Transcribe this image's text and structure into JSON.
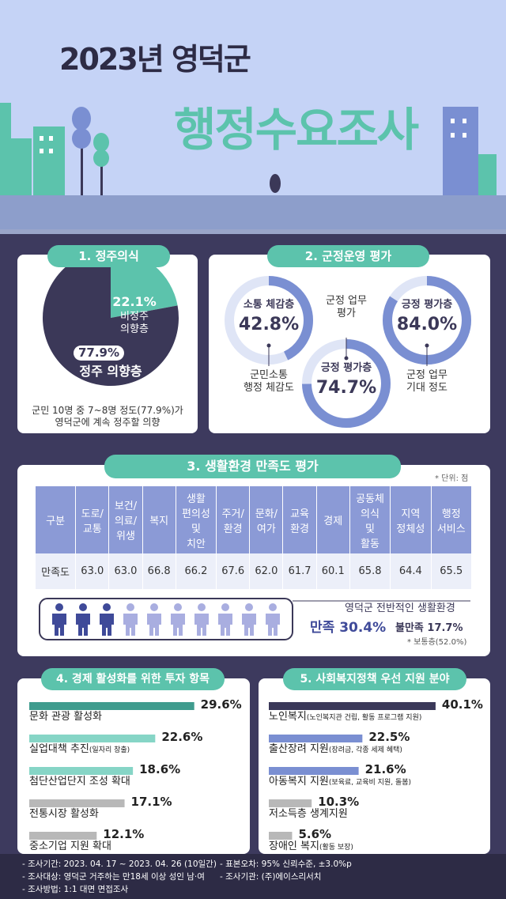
{
  "header": {
    "subtitle": "2023년 영덕군",
    "title": "행정수요조사"
  },
  "residence": {
    "title": "1. 정주의식",
    "type": "pie",
    "names": [
      "정주 의향층",
      "비정주\n의향층"
    ],
    "values": [
      77.9,
      22.1
    ],
    "value_labels": [
      "77.9%",
      "22.1%"
    ],
    "colors": [
      "#3b3858",
      "#5cc3ac"
    ],
    "note": "군민 10명 중 7~8명 정도(77.9%)가\n영덕군에 계속 정주할 의향"
  },
  "administration": {
    "title": "2. 군정운영 평가",
    "type": "gauge",
    "range": [
      0,
      100
    ],
    "names": [
      "소통 체감층",
      "긍정 평가층",
      "긍정 평가층"
    ],
    "values": [
      42.8,
      74.7,
      84.0
    ],
    "value_labels": [
      "42.8%",
      "74.7%",
      "84.0%"
    ],
    "captions": [
      "군민소통\n행정 체감도",
      "군정 업무\n평가",
      "군정 업무\n기대 정도"
    ],
    "track_color": "#dfe5f6",
    "color": "#7a8fd2"
  },
  "living": {
    "title": "3. 생활환경 만족도 평가",
    "unit": "* 단위: 점",
    "table": {
      "header": [
        "구분",
        "도로/\n교통",
        "보건/\n의료/\n위생",
        "복지",
        "생활\n편의성\n및\n치안",
        "주거/\n환경",
        "문화/\n여가",
        "교육\n환경",
        "경제",
        "공동체\n의식\n및\n활동",
        "지역\n정체성",
        "행정\n서비스"
      ],
      "rows": [
        [
          "만족도",
          "63.0",
          "63.0",
          "66.8",
          "66.2",
          "67.6",
          "62.0",
          "61.7",
          "60.1",
          "65.8",
          "64.4",
          "65.5"
        ]
      ]
    },
    "summary": {
      "label": "영덕군 전반적인 생활환경",
      "satisfied": "만족 30.4%",
      "dissatisfied": "불만족 17.7%",
      "neutral": "* 보통층(52.0%)"
    }
  },
  "economy": {
    "title": "4. 경제 활성화를 위한 투자 항목",
    "type": "bar",
    "categories": [
      "문화 관광 활성화",
      "실업대책 추진",
      "첨단산업단지 조성 확대",
      "전통시장 활성화",
      "중소기업 지원 확대"
    ],
    "notes": [
      null,
      "(일자리 창출)",
      null,
      null,
      null
    ],
    "values": [
      29.6,
      22.6,
      18.6,
      17.1,
      12.1
    ],
    "value_labels": [
      "29.6%",
      "22.6%",
      "18.6%",
      "17.1%",
      "12.1%"
    ],
    "colors": [
      "#3f9c8e",
      "#86d5c6",
      "#86d5c6",
      "#b8b8b8",
      "#b8b8b8"
    ],
    "xlim": [
      0,
      40
    ]
  },
  "welfare": {
    "title": "5. 사회복지정책 우선 지원 분야",
    "type": "bar",
    "categories": [
      "노인복지",
      "출산장려 지원",
      "아동복지 지원",
      "저소득층 생계지원",
      "장애인 복지"
    ],
    "notes": [
      "(노인복지관 건립, 활동 프로그램 지원)",
      "(장려금, 각종 세제 혜택)",
      "(보육료, 교육비 지원, 돌봄)",
      null,
      "(활동 보장)"
    ],
    "values": [
      40.1,
      22.5,
      21.6,
      10.3,
      5.6
    ],
    "value_labels": [
      "40.1%",
      "22.5%",
      "21.6%",
      "10.3%",
      "5.6%"
    ],
    "colors": [
      "#3a3859",
      "#7a8fd2",
      "#7a8fd2",
      "#b8b8b8",
      "#b8b8b8"
    ],
    "xlim": [
      0,
      50
    ]
  },
  "footer": {
    "items": [
      "- 조사기간: 2023. 04. 17 ~ 2023. 04. 26 (10일간)",
      "- 표본오차: 95% 신뢰수준, ±3.0%p",
      "- 조사대상: 영덕군 거주하는 만18세 이상 성인 남·여",
      "- 조사기관: (주)에이스리서치",
      "- 조사방법: 1:1 대면 면접조사"
    ]
  }
}
